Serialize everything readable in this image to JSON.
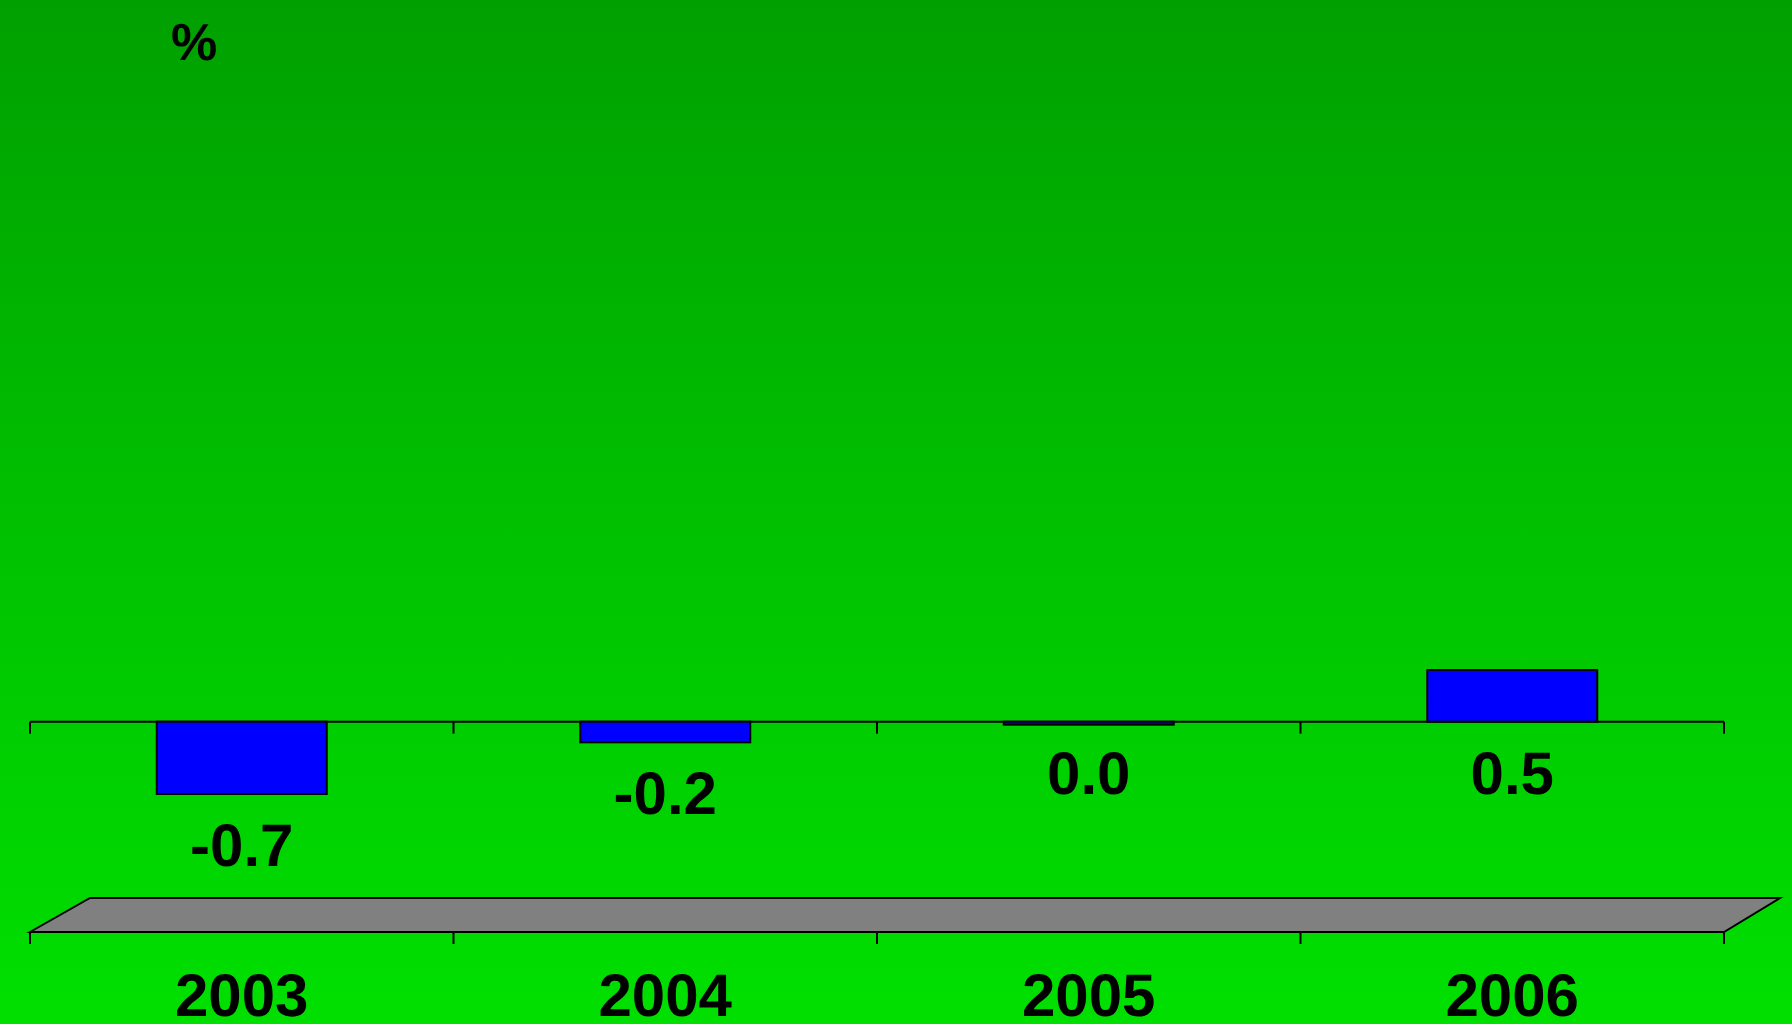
{
  "chart_data": {
    "type": "bar",
    "annotations": [
      "%"
    ],
    "categories": [
      "2003",
      "2004",
      "2005",
      "2006"
    ],
    "values": [
      -0.7,
      -0.2,
      0.0,
      0.5
    ],
    "color": "#0000ff",
    "value_labels": [
      "-0.7",
      "-0.2",
      "0.0",
      "0.5"
    ]
  }
}
